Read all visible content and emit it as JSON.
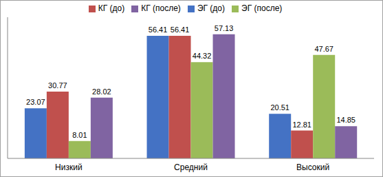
{
  "chart_data": {
    "type": "bar",
    "categories": [
      "Низкий",
      "Средний",
      "Высокий"
    ],
    "series": [
      {
        "name": "ЭГ (до)",
        "color": "#4472c4",
        "values": [
          23.07,
          56.41,
          20.51
        ]
      },
      {
        "name": "КГ (до)",
        "color": "#c0504d",
        "values": [
          30.77,
          56.41,
          12.81
        ]
      },
      {
        "name": "ЭГ (после)",
        "color": "#9bbb59",
        "values": [
          8.01,
          44.32,
          47.67
        ]
      },
      {
        "name": "КГ (после)",
        "color": "#8064a2",
        "values": [
          28.02,
          57.13,
          14.85
        ]
      }
    ],
    "ylim": [
      0,
      65
    ],
    "data_labels": true,
    "legend": "top",
    "tick_labels": "x",
    "grid": false
  }
}
